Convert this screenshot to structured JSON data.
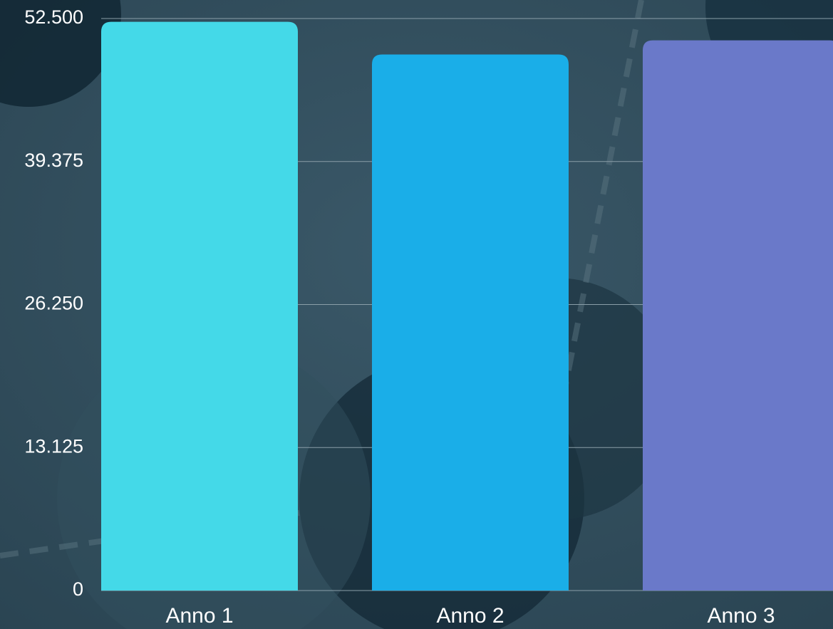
{
  "chart_data": {
    "type": "bar",
    "categories": [
      "Anno 1",
      "Anno 2",
      "Anno 3"
    ],
    "values": [
      52200,
      49200,
      50500
    ],
    "colors": [
      "#44d9e8",
      "#1aaee8",
      "#6a79c9"
    ],
    "ylim": [
      0,
      52500
    ],
    "yticks": [
      0,
      {
        "value": 13125,
        "label": "13.125"
      },
      {
        "value": 26250,
        "label": "26.250"
      },
      {
        "value": 39375,
        "label": "39.375"
      },
      {
        "value": 52500,
        "label": "52.500"
      }
    ],
    "grid": true
  }
}
